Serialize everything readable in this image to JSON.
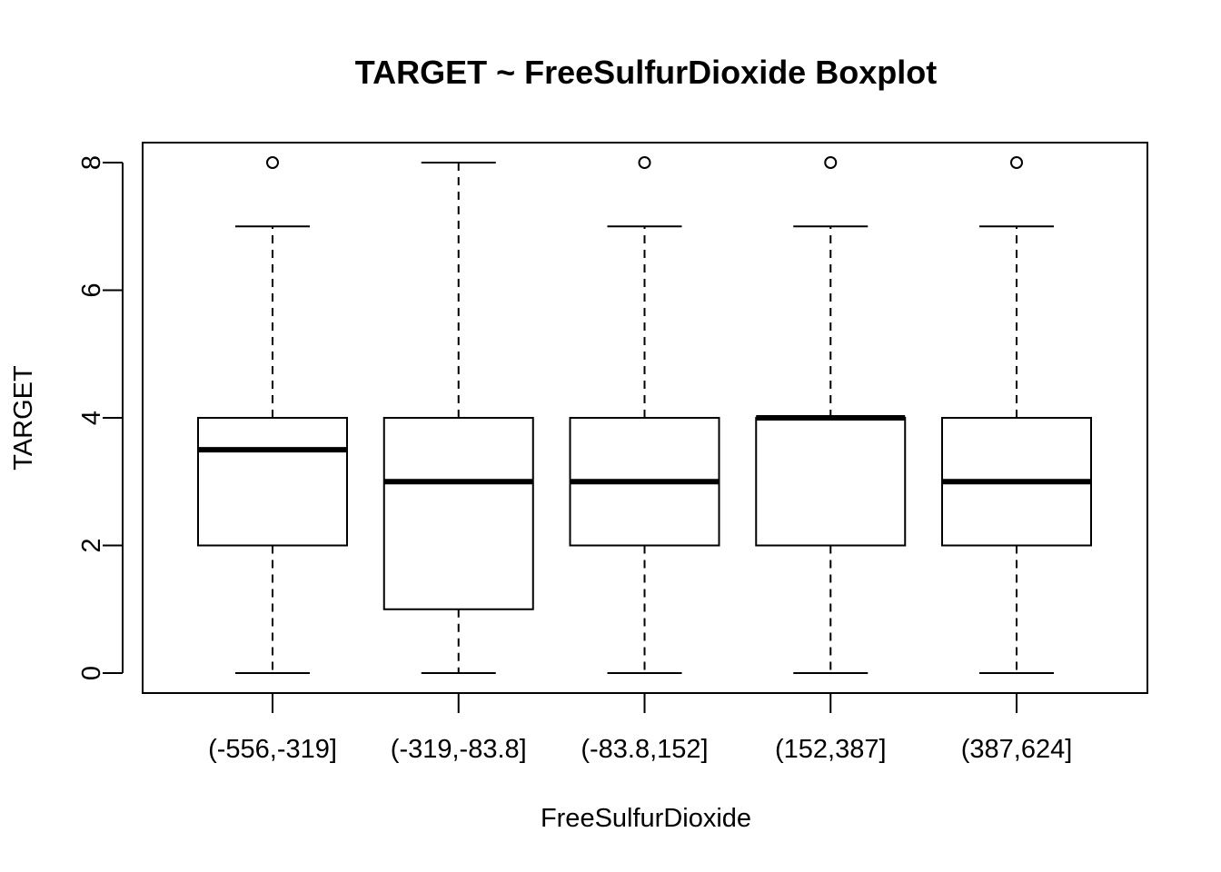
{
  "chart_data": {
    "type": "boxplot",
    "title": "TARGET ~ FreeSulfurDioxide Boxplot",
    "xlabel": "FreeSulfurDioxide",
    "ylabel": "TARGET",
    "categories": [
      "(-556,-319]",
      "(-319,-83.8]",
      "(-83.8,152]",
      "(152,387]",
      "(387,624]"
    ],
    "yticks": [
      "0",
      "2",
      "4",
      "6",
      "8"
    ],
    "ylim": [
      -0.3,
      8.3
    ],
    "grid": false,
    "legend": "none",
    "boxes": [
      {
        "category": "(-556,-319]",
        "whisker_low": 0,
        "q1": 2,
        "median": 3.5,
        "q3": 4,
        "whisker_high": 7,
        "outliers": [
          8
        ]
      },
      {
        "category": "(-319,-83.8]",
        "whisker_low": 0,
        "q1": 1,
        "median": 3,
        "q3": 4,
        "whisker_high": 8,
        "outliers": []
      },
      {
        "category": "(-83.8,152]",
        "whisker_low": 0,
        "q1": 2,
        "median": 3,
        "q3": 4,
        "whisker_high": 7,
        "outliers": [
          8
        ]
      },
      {
        "category": "(152,387]",
        "whisker_low": 0,
        "q1": 2,
        "median": 4,
        "q3": 4,
        "whisker_high": 7,
        "outliers": [
          8
        ]
      },
      {
        "category": "(387,624]",
        "whisker_low": 0,
        "q1": 2,
        "median": 3,
        "q3": 4,
        "whisker_high": 7,
        "outliers": [
          8
        ]
      }
    ],
    "colors": {
      "line": "#000000",
      "box_fill": "#ffffff",
      "background": "#ffffff"
    }
  }
}
